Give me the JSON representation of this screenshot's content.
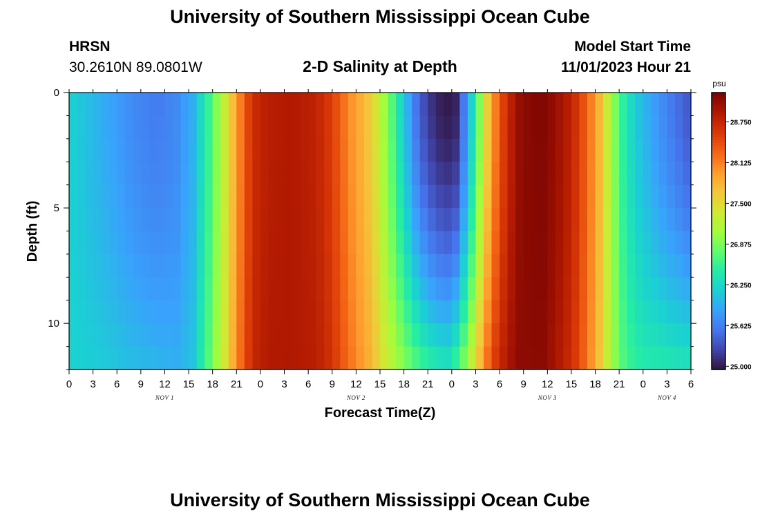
{
  "header": {
    "title_top": "University of Southern Mississippi Ocean Cube",
    "station": "HRSN",
    "coords": "30.2610N  89.0801W",
    "chart_title": "2-D Salinity at Depth",
    "model_label": "Model Start Time",
    "model_time": "11/01/2023 Hour 21",
    "title_bottom": "University of Southern Mississippi Ocean Cube"
  },
  "chart_data": {
    "type": "heatmap",
    "title": "2-D Salinity at Depth",
    "xlabel": "Forecast Time(Z)",
    "ylabel": "Depth (ft)",
    "x_range_hours": [
      0,
      78
    ],
    "x_ticks": [
      0,
      3,
      6,
      9,
      12,
      15,
      18,
      21,
      24,
      27,
      30,
      33,
      36,
      39,
      42,
      45,
      48,
      51,
      54,
      57,
      60,
      63,
      66,
      69,
      72,
      75,
      78
    ],
    "x_tick_labels": [
      "0",
      "3",
      "6",
      "9",
      "12",
      "15",
      "18",
      "21",
      "0",
      "3",
      "6",
      "9",
      "12",
      "15",
      "18",
      "21",
      "0",
      "3",
      "6",
      "9",
      "12",
      "15",
      "18",
      "21",
      "0",
      "3",
      "6"
    ],
    "day_labels": [
      {
        "hour": 12,
        "label": "NOV 1"
      },
      {
        "hour": 36,
        "label": "NOV 2"
      },
      {
        "hour": 60,
        "label": "NOV 3"
      },
      {
        "hour": 75,
        "label": "NOV 4"
      }
    ],
    "y_range_ft": [
      0,
      12
    ],
    "y_ticks": [
      0,
      5,
      10
    ],
    "y_tick_labels": [
      "0",
      "5",
      "10"
    ],
    "colorbar": {
      "unit": "psu",
      "min": 24.95,
      "max": 29.2,
      "tick_values": [
        25.0,
        25.625,
        26.25,
        26.875,
        27.5,
        28.125,
        28.75
      ],
      "tick_labels": [
        "25.000",
        "25.625",
        "26.250",
        "26.875",
        "27.500",
        "28.125",
        "28.750"
      ],
      "colors": [
        "#30123b",
        "#4145ab",
        "#4675ed",
        "#39a2fc",
        "#1bcfd4",
        "#24eca6",
        "#61fc6c",
        "#a4fc3b",
        "#d1e834",
        "#f3c63a",
        "#fe9b2d",
        "#f36315",
        "#d93806",
        "#b11901",
        "#7a0403"
      ]
    },
    "profiles": {
      "time_hours": [
        0,
        4,
        8,
        11,
        13.5,
        15.5,
        17.5,
        19.5,
        21.5,
        23,
        25,
        28,
        31,
        33,
        35,
        38,
        40,
        42,
        44,
        46,
        47.5,
        48.5,
        50,
        51.5,
        53,
        55,
        56.5,
        58,
        59.5,
        61,
        63,
        65,
        66.5,
        68,
        69.5,
        71,
        72.5,
        74,
        76,
        78
      ],
      "surface_psu": [
        26.2,
        25.95,
        25.7,
        25.6,
        25.7,
        25.95,
        26.55,
        27.3,
        28.15,
        28.7,
        28.85,
        28.9,
        28.8,
        28.55,
        28.1,
        27.6,
        26.9,
        26.1,
        25.4,
        25.05,
        25.0,
        25.05,
        25.85,
        26.9,
        27.95,
        28.75,
        29.05,
        29.15,
        29.15,
        29.05,
        28.8,
        28.3,
        27.8,
        27.1,
        26.5,
        26.15,
        25.95,
        25.75,
        25.55,
        25.35
      ],
      "bottom_psu": [
        26.2,
        26.15,
        26.05,
        26.0,
        25.95,
        26.1,
        26.7,
        27.4,
        28.25,
        28.75,
        28.9,
        28.9,
        28.85,
        28.65,
        28.25,
        27.8,
        27.3,
        26.95,
        26.65,
        26.45,
        26.4,
        26.6,
        27.1,
        27.8,
        28.5,
        28.95,
        29.1,
        29.1,
        29.1,
        28.95,
        28.7,
        28.2,
        27.7,
        27.1,
        26.7,
        26.5,
        26.45,
        26.45,
        26.4,
        26.4
      ]
    }
  }
}
